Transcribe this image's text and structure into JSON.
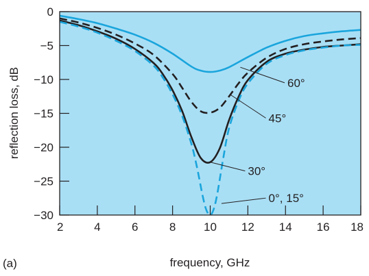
{
  "chart_data": {
    "type": "line",
    "panel_label": "(a)",
    "title": "",
    "xlabel": "frequency, GHz",
    "ylabel": "reflection loss, dB",
    "xlim": [
      2,
      18
    ],
    "ylim": [
      -30,
      0
    ],
    "xticks": [
      2,
      4,
      6,
      8,
      10,
      12,
      14,
      16,
      18
    ],
    "yticks": [
      0,
      -5,
      -10,
      -15,
      -20,
      -25,
      -30
    ],
    "plot_background": "#a9dff5",
    "grid": false,
    "series": [
      {
        "name": "60°",
        "color": "#1aa5dc",
        "dash": "solid",
        "x": [
          2,
          3,
          4,
          5,
          6,
          7,
          8,
          9,
          9.5,
          10,
          10.5,
          11,
          12,
          13,
          14,
          15,
          16,
          17,
          18
        ],
        "y": [
          -0.6,
          -1.1,
          -1.7,
          -2.5,
          -3.4,
          -4.6,
          -6.2,
          -8.1,
          -8.7,
          -8.9,
          -8.7,
          -8.2,
          -6.7,
          -5.3,
          -4.3,
          -3.6,
          -3.2,
          -2.9,
          -2.7
        ]
      },
      {
        "name": "45°",
        "color": "#231f20",
        "dash": "dashed",
        "x": [
          2,
          3,
          4,
          5,
          6,
          7,
          8,
          8.5,
          9,
          9.5,
          10,
          10.5,
          11,
          11.5,
          12,
          13,
          14,
          15,
          16,
          17,
          18
        ],
        "y": [
          -1.0,
          -1.6,
          -2.4,
          -3.4,
          -4.7,
          -6.4,
          -9.2,
          -11.2,
          -13.3,
          -14.7,
          -14.9,
          -14.2,
          -12.5,
          -10.6,
          -9.0,
          -6.8,
          -5.5,
          -4.8,
          -4.4,
          -4.1,
          -3.9
        ]
      },
      {
        "name": "30°",
        "color": "#231f20",
        "dash": "solid",
        "x": [
          2,
          3,
          4,
          5,
          6,
          7,
          7.5,
          8,
          8.5,
          9,
          9.5,
          10,
          10.5,
          11,
          11.5,
          12,
          13,
          14,
          15,
          16,
          17,
          18
        ],
        "y": [
          -1.3,
          -2.0,
          -2.9,
          -4.0,
          -5.5,
          -7.6,
          -9.3,
          -11.6,
          -14.6,
          -18.5,
          -21.6,
          -22.2,
          -20.2,
          -16.0,
          -12.6,
          -10.1,
          -7.4,
          -6.2,
          -5.6,
          -5.2,
          -5.0,
          -4.8
        ]
      },
      {
        "name": "0°, 15°",
        "color": "#1aa5dc",
        "dash": "dashed",
        "x": [
          2,
          3,
          4,
          5,
          6,
          7,
          7.5,
          8,
          8.5,
          9,
          9.3,
          9.6,
          9.8,
          10,
          10.2,
          10.4,
          10.7,
          11,
          11.5,
          12,
          13,
          14,
          15,
          16,
          17,
          18
        ],
        "y": [
          -1.5,
          -2.2,
          -3.1,
          -4.3,
          -5.8,
          -8.0,
          -9.8,
          -12.2,
          -15.3,
          -19.5,
          -23.0,
          -27.2,
          -29.3,
          -30.0,
          -29.0,
          -26.5,
          -21.5,
          -17.2,
          -13.2,
          -10.6,
          -7.7,
          -6.4,
          -5.7,
          -5.3,
          -5.0,
          -4.9
        ]
      }
    ],
    "annotations": [
      {
        "text": "60°",
        "series": "60°",
        "anchor_x": 11.6,
        "anchor_y": -8.2,
        "label_x": 14.1,
        "label_y": -11.1
      },
      {
        "text": "45°",
        "series": "45°",
        "anchor_x": 11.1,
        "anchor_y": -12.3,
        "label_x": 13.1,
        "label_y": -16.3
      },
      {
        "text": "30°",
        "series": "30°",
        "anchor_x": 10.0,
        "anchor_y": -22.2,
        "label_x": 12.0,
        "label_y": -24.1
      },
      {
        "text": "0°, 15°",
        "series": "0°, 15°",
        "anchor_x": 10.6,
        "anchor_y": -28.3,
        "label_x": 13.1,
        "label_y": -28.1
      }
    ]
  }
}
